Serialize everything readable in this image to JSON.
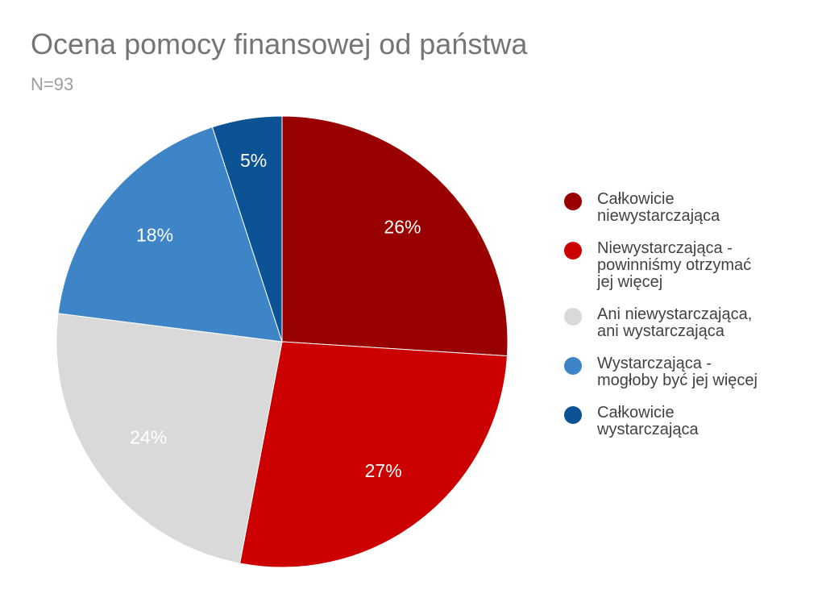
{
  "chart_data": {
    "type": "pie",
    "title": "Ocena pomocy finansowej od państwa",
    "subtitle": "N=93",
    "categories": [
      "Całkowicie niewystarczająca",
      "Niewystarczająca - powinniśmy otrzymać jej więcej",
      "Ani niewystarczająca, ani wystarczająca",
      "Wystarczająca - mogłoby być jej więcej",
      "Całkowicie wystarczająca"
    ],
    "values": [
      26,
      27,
      24,
      18,
      5
    ],
    "value_labels": [
      "26%",
      "27%",
      "24%",
      "18%",
      "5%"
    ],
    "colors": [
      "#990000",
      "#cc0000",
      "#d9d9d9",
      "#3d85c6",
      "#0b5394"
    ],
    "legend": "right"
  }
}
